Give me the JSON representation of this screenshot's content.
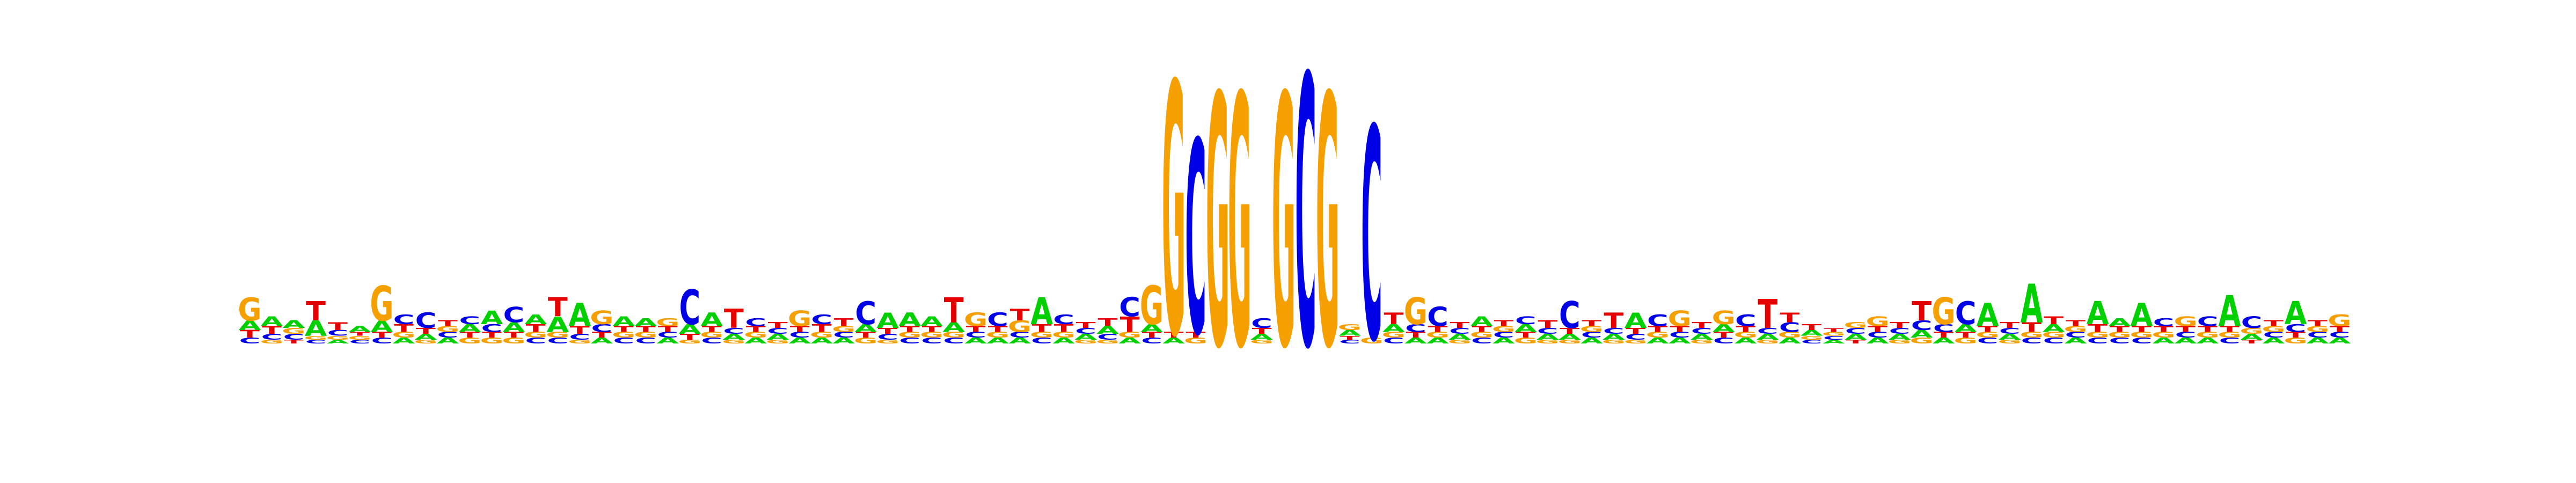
{
  "chart_data": {
    "type": "sequence-logo",
    "alphabet": [
      "A",
      "C",
      "G",
      "T"
    ],
    "colors": {
      "A": "#00d000",
      "C": "#0000e6",
      "G": "#f5a000",
      "T": "#e60000"
    },
    "ylim": [
      0,
      2
    ],
    "positions": [
      {
        "A": 0.05,
        "C": 0.03,
        "G": 0.12,
        "T": 0.04
      },
      {
        "A": 0.05,
        "C": 0.03,
        "G": 0.02,
        "T": 0.04
      },
      {
        "A": 0.04,
        "C": 0.03,
        "G": 0.03,
        "T": 0.02
      },
      {
        "A": 0.08,
        "C": 0.02,
        "G": 0.02,
        "T": 0.1
      },
      {
        "A": 0.02,
        "C": 0.03,
        "G": 0.02,
        "T": 0.04
      },
      {
        "A": 0.03,
        "C": 0.02,
        "G": 0.02,
        "T": 0.02
      },
      {
        "A": 0.06,
        "C": 0.03,
        "G": 0.18,
        "T": 0.03
      },
      {
        "A": 0.03,
        "C": 0.05,
        "G": 0.03,
        "T": 0.04
      },
      {
        "A": 0.03,
        "C": 0.08,
        "G": 0.02,
        "T": 0.03
      },
      {
        "A": 0.03,
        "C": 0.03,
        "G": 0.03,
        "T": 0.03
      },
      {
        "A": 0.04,
        "C": 0.04,
        "G": 0.03,
        "T": 0.03
      },
      {
        "A": 0.07,
        "C": 0.04,
        "G": 0.03,
        "T": 0.03
      },
      {
        "A": 0.05,
        "C": 0.08,
        "G": 0.03,
        "T": 0.03
      },
      {
        "A": 0.05,
        "C": 0.03,
        "G": 0.03,
        "T": 0.04
      },
      {
        "A": 0.08,
        "C": 0.03,
        "G": 0.03,
        "T": 0.1
      },
      {
        "A": 0.12,
        "C": 0.03,
        "G": 0.02,
        "T": 0.04
      },
      {
        "A": 0.03,
        "C": 0.04,
        "G": 0.07,
        "T": 0.03
      },
      {
        "A": 0.05,
        "C": 0.03,
        "G": 0.03,
        "T": 0.03
      },
      {
        "A": 0.04,
        "C": 0.03,
        "G": 0.03,
        "T": 0.03
      },
      {
        "A": 0.03,
        "C": 0.03,
        "G": 0.04,
        "T": 0.03
      },
      {
        "A": 0.05,
        "C": 0.18,
        "G": 0.02,
        "T": 0.03
      },
      {
        "A": 0.07,
        "C": 0.03,
        "G": 0.03,
        "T": 0.03
      },
      {
        "A": 0.03,
        "C": 0.03,
        "G": 0.02,
        "T": 0.1
      },
      {
        "A": 0.03,
        "C": 0.04,
        "G": 0.03,
        "T": 0.03
      },
      {
        "A": 0.03,
        "C": 0.03,
        "G": 0.02,
        "T": 0.03
      },
      {
        "A": 0.03,
        "C": 0.03,
        "G": 0.08,
        "T": 0.03
      },
      {
        "A": 0.03,
        "C": 0.05,
        "G": 0.03,
        "T": 0.04
      },
      {
        "A": 0.03,
        "C": 0.03,
        "G": 0.03,
        "T": 0.04
      },
      {
        "A": 0.04,
        "C": 0.12,
        "G": 0.03,
        "T": 0.03
      },
      {
        "A": 0.08,
        "C": 0.03,
        "G": 0.02,
        "T": 0.03
      },
      {
        "A": 0.07,
        "C": 0.03,
        "G": 0.03,
        "T": 0.03
      },
      {
        "A": 0.05,
        "C": 0.03,
        "G": 0.03,
        "T": 0.03
      },
      {
        "A": 0.05,
        "C": 0.03,
        "G": 0.03,
        "T": 0.13
      },
      {
        "A": 0.03,
        "C": 0.03,
        "G": 0.07,
        "T": 0.03
      },
      {
        "A": 0.03,
        "C": 0.07,
        "G": 0.03,
        "T": 0.03
      },
      {
        "A": 0.03,
        "C": 0.03,
        "G": 0.06,
        "T": 0.06
      },
      {
        "A": 0.14,
        "C": 0.03,
        "G": 0.03,
        "T": 0.04
      },
      {
        "A": 0.03,
        "C": 0.05,
        "G": 0.03,
        "T": 0.04
      },
      {
        "A": 0.03,
        "C": 0.03,
        "G": 0.02,
        "T": 0.03
      },
      {
        "A": 0.04,
        "C": 0.03,
        "G": 0.02,
        "T": 0.04
      },
      {
        "A": 0.03,
        "C": 0.1,
        "G": 0.03,
        "T": 0.08
      },
      {
        "A": 0.04,
        "C": 0.03,
        "G": 0.2,
        "T": 0.03
      },
      {
        "A": 0.03,
        "C": 0.0,
        "G": 1.3,
        "T": 0.03
      },
      {
        "A": 0.0,
        "C": 1.0,
        "G": 0.03,
        "T": 0.03
      },
      {
        "A": 0.0,
        "C": 0.0,
        "G": 1.3,
        "T": 0.0
      },
      {
        "A": 0.0,
        "C": 0.0,
        "G": 1.3,
        "T": 0.0
      },
      {
        "A": 0.03,
        "C": 0.05,
        "G": 0.02,
        "T": 0.03
      },
      {
        "A": 0.0,
        "C": 0.0,
        "G": 1.3,
        "T": 0.0
      },
      {
        "A": 0.0,
        "C": 1.4,
        "G": 0.0,
        "T": 0.0
      },
      {
        "A": 0.0,
        "C": 0.0,
        "G": 1.3,
        "T": 0.0
      },
      {
        "A": 0.03,
        "C": 0.02,
        "G": 0.03,
        "T": 0.02
      },
      {
        "A": 0.0,
        "C": 1.1,
        "G": 0.03,
        "T": 0.0
      },
      {
        "A": 0.04,
        "C": 0.03,
        "G": 0.03,
        "T": 0.06
      },
      {
        "A": 0.03,
        "C": 0.04,
        "G": 0.14,
        "T": 0.03
      },
      {
        "A": 0.03,
        "C": 0.1,
        "G": 0.03,
        "T": 0.03
      },
      {
        "A": 0.03,
        "C": 0.03,
        "G": 0.02,
        "T": 0.03
      },
      {
        "A": 0.05,
        "C": 0.03,
        "G": 0.03,
        "T": 0.03
      },
      {
        "A": 0.03,
        "C": 0.03,
        "G": 0.03,
        "T": 0.03
      },
      {
        "A": 0.04,
        "C": 0.04,
        "G": 0.03,
        "T": 0.03
      },
      {
        "A": 0.03,
        "C": 0.03,
        "G": 0.02,
        "T": 0.04
      },
      {
        "A": 0.03,
        "C": 0.14,
        "G": 0.02,
        "T": 0.03
      },
      {
        "A": 0.03,
        "C": 0.03,
        "G": 0.03,
        "T": 0.03
      },
      {
        "A": 0.03,
        "C": 0.03,
        "G": 0.02,
        "T": 0.08
      },
      {
        "A": 0.08,
        "C": 0.03,
        "G": 0.02,
        "T": 0.03
      },
      {
        "A": 0.03,
        "C": 0.06,
        "G": 0.03,
        "T": 0.03
      },
      {
        "A": 0.03,
        "C": 0.03,
        "G": 0.08,
        "T": 0.03
      },
      {
        "A": 0.03,
        "C": 0.03,
        "G": 0.02,
        "T": 0.03
      },
      {
        "A": 0.04,
        "C": 0.03,
        "G": 0.07,
        "T": 0.03
      },
      {
        "A": 0.03,
        "C": 0.06,
        "G": 0.03,
        "T": 0.03
      },
      {
        "A": 0.03,
        "C": 0.03,
        "G": 0.02,
        "T": 0.15
      },
      {
        "A": 0.03,
        "C": 0.05,
        "G": 0.03,
        "T": 0.05
      },
      {
        "A": 0.03,
        "C": 0.02,
        "G": 0.02,
        "T": 0.03
      },
      {
        "A": 0.02,
        "C": 0.02,
        "G": 0.02,
        "T": 0.02
      },
      {
        "A": 0.03,
        "C": 0.03,
        "G": 0.03,
        "T": 0.02
      },
      {
        "A": 0.03,
        "C": 0.03,
        "G": 0.05,
        "T": 0.03
      },
      {
        "A": 0.03,
        "C": 0.03,
        "G": 0.02,
        "T": 0.03
      },
      {
        "A": 0.04,
        "C": 0.05,
        "G": 0.03,
        "T": 0.1
      },
      {
        "A": 0.03,
        "C": 0.04,
        "G": 0.14,
        "T": 0.03
      },
      {
        "A": 0.04,
        "C": 0.12,
        "G": 0.03,
        "T": 0.03
      },
      {
        "A": 0.12,
        "C": 0.03,
        "G": 0.03,
        "T": 0.03
      },
      {
        "A": 0.03,
        "C": 0.03,
        "G": 0.02,
        "T": 0.03
      },
      {
        "A": 0.2,
        "C": 0.03,
        "G": 0.03,
        "T": 0.05
      },
      {
        "A": 0.04,
        "C": 0.03,
        "G": 0.03,
        "T": 0.04
      },
      {
        "A": 0.03,
        "C": 0.03,
        "G": 0.03,
        "T": 0.03
      },
      {
        "A": 0.12,
        "C": 0.03,
        "G": 0.03,
        "T": 0.04
      },
      {
        "A": 0.04,
        "C": 0.03,
        "G": 0.03,
        "T": 0.03
      },
      {
        "A": 0.12,
        "C": 0.03,
        "G": 0.03,
        "T": 0.03
      },
      {
        "A": 0.03,
        "C": 0.04,
        "G": 0.03,
        "T": 0.03
      },
      {
        "A": 0.03,
        "C": 0.03,
        "G": 0.05,
        "T": 0.03
      },
      {
        "A": 0.03,
        "C": 0.05,
        "G": 0.03,
        "T": 0.03
      },
      {
        "A": 0.16,
        "C": 0.03,
        "G": 0.03,
        "T": 0.03
      },
      {
        "A": 0.03,
        "C": 0.06,
        "G": 0.03,
        "T": 0.02
      },
      {
        "A": 0.03,
        "C": 0.03,
        "G": 0.03,
        "T": 0.03
      },
      {
        "A": 0.12,
        "C": 0.04,
        "G": 0.03,
        "T": 0.03
      },
      {
        "A": 0.03,
        "C": 0.03,
        "G": 0.03,
        "T": 0.03
      },
      {
        "A": 0.03,
        "C": 0.03,
        "G": 0.06,
        "T": 0.03
      }
    ]
  }
}
